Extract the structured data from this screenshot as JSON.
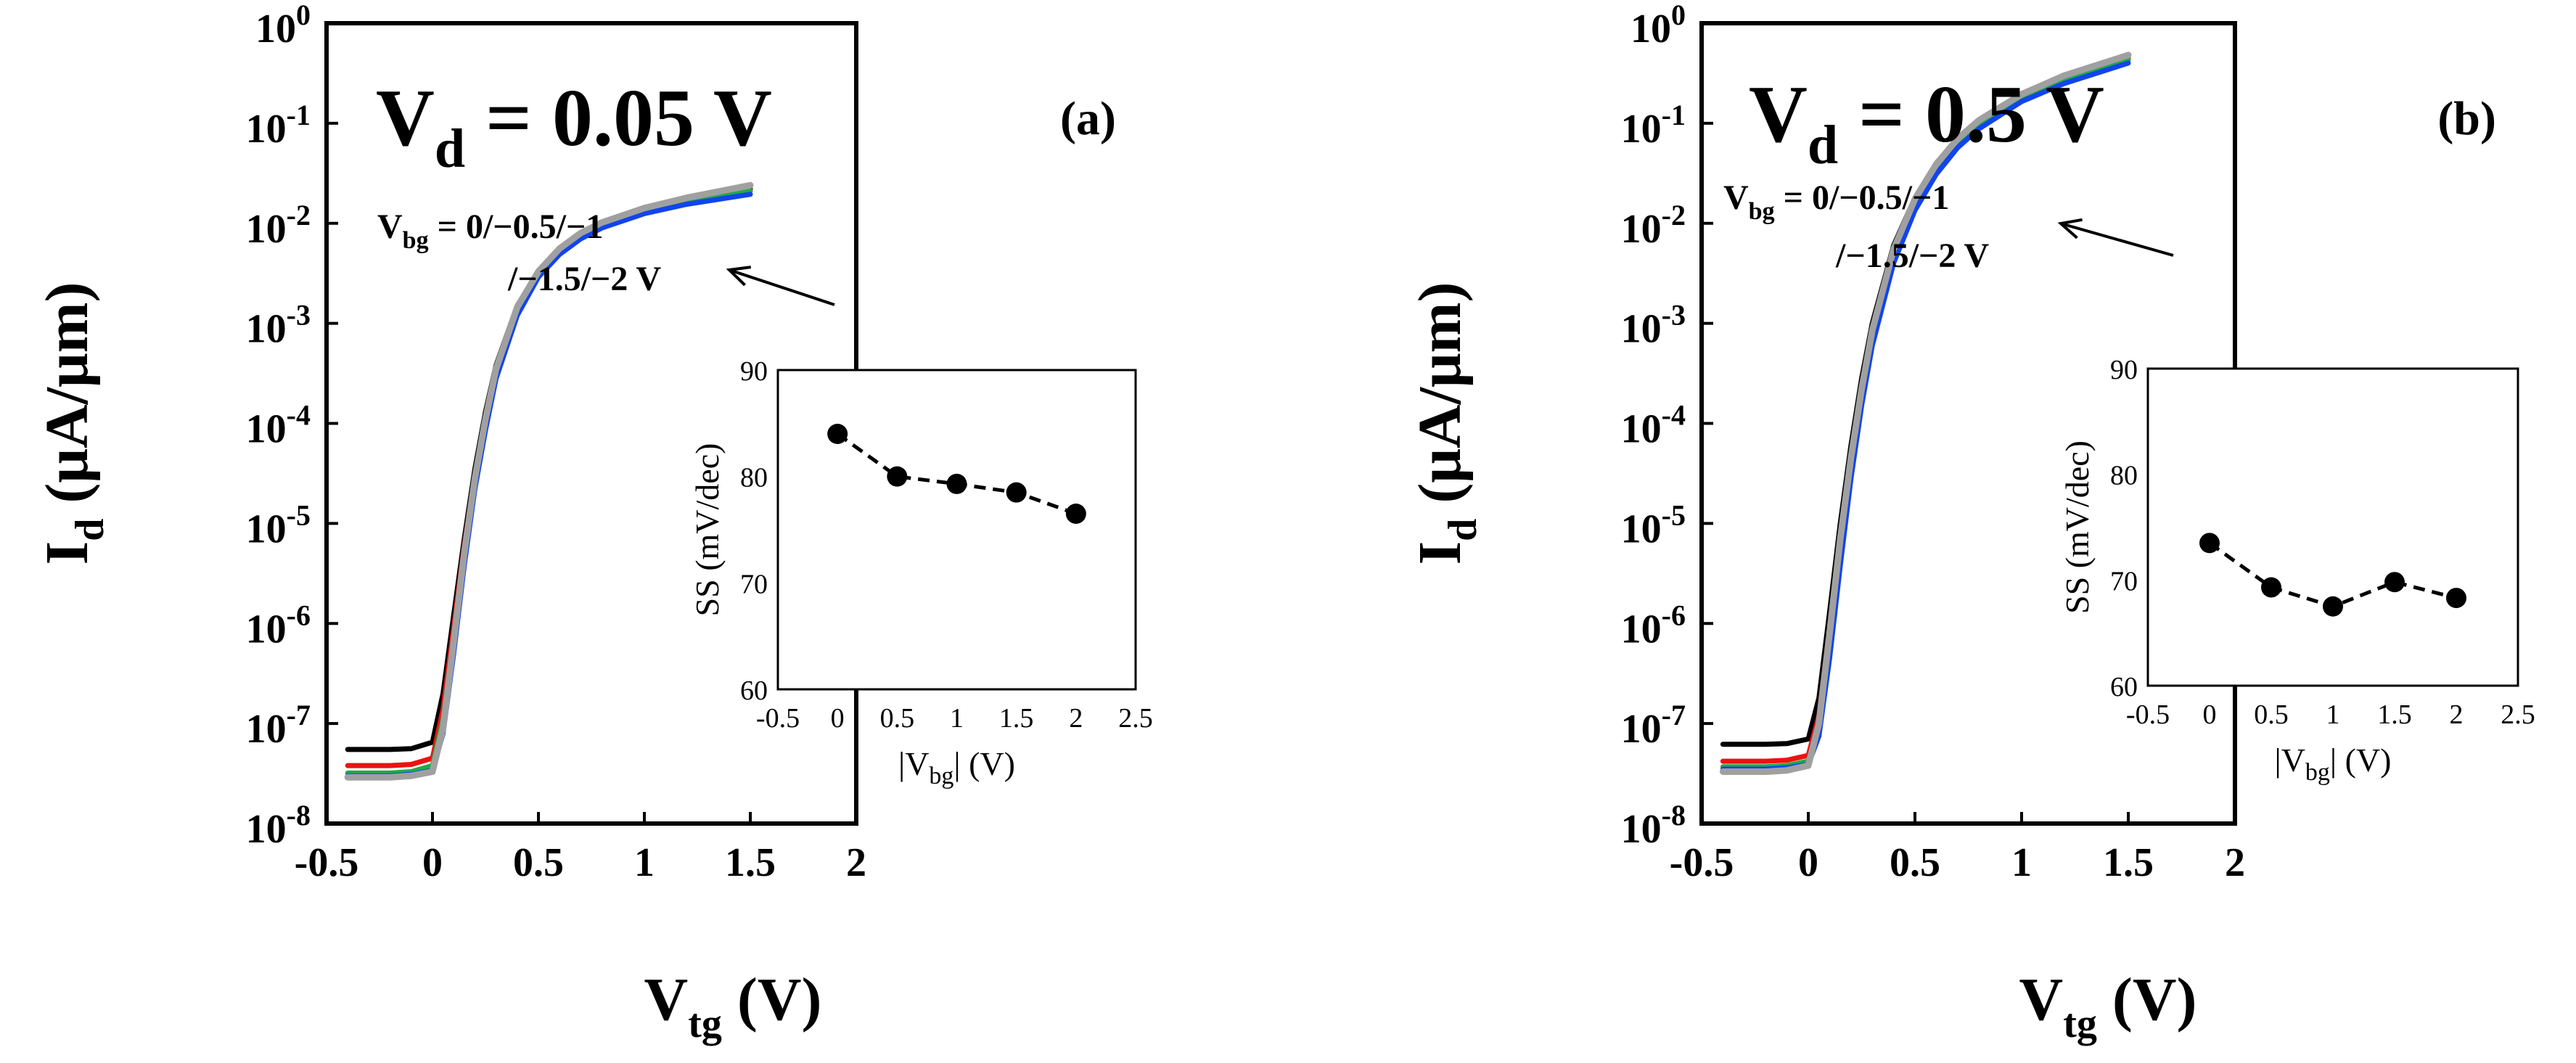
{
  "figure": {
    "panels": [
      {
        "id": "a",
        "panel_label": "(a)",
        "vd_main": "V",
        "vd_sub": "d",
        "vd_value": " = 0.05 V",
        "annotation_line1_main": "V",
        "annotation_line1_sub": "bg",
        "annotation_line1_rest": " = 0/−0.5/−1",
        "annotation_line2": "/−1.5/−2 V"
      },
      {
        "id": "b",
        "panel_label": "(b)",
        "vd_main": "V",
        "vd_sub": "d",
        "vd_value": " = 0.5 V",
        "annotation_line1_main": "V",
        "annotation_line1_sub": "bg",
        "annotation_line1_rest": " = 0/−0.5/−1",
        "annotation_line2": "/−1.5/−2 V"
      }
    ],
    "ylabel_main": "I",
    "ylabel_sub": "d",
    "ylabel_rest": " (μA/μm)",
    "xlabel_main": "V",
    "xlabel_sub": "tg",
    "xlabel_rest": " (V)",
    "inset_ylabel": "SS (mV/dec)",
    "inset_xlabel_pre": "|V",
    "inset_xlabel_sub": "bg",
    "inset_xlabel_post": "| (V)"
  },
  "chart_data": [
    {
      "type": "line",
      "title": "Vd = 0.05 V (a)",
      "xlabel": "Vtg (V)",
      "ylabel": "Id (μA/μm)",
      "xlim": [
        -0.5,
        2
      ],
      "ylim_log10": [
        -8,
        0
      ],
      "x_ticks": [
        "-0.5",
        "0",
        "0.5",
        "1",
        "1.5",
        "2"
      ],
      "y_ticks": [
        {
          "base": "10",
          "exp": "0"
        },
        {
          "base": "10",
          "exp": "-1"
        },
        {
          "base": "10",
          "exp": "-2"
        },
        {
          "base": "10",
          "exp": "-3"
        },
        {
          "base": "10",
          "exp": "-4"
        },
        {
          "base": "10",
          "exp": "-5"
        },
        {
          "base": "10",
          "exp": "-6"
        },
        {
          "base": "10",
          "exp": "-7"
        },
        {
          "base": "10",
          "exp": "-8"
        }
      ],
      "x": [
        -0.4,
        -0.3,
        -0.2,
        -0.1,
        0.0,
        0.05,
        0.1,
        0.15,
        0.2,
        0.25,
        0.3,
        0.4,
        0.5,
        0.6,
        0.7,
        0.8,
        1.0,
        1.2,
        1.5
      ],
      "series": [
        {
          "name": "Vbg = 0 V",
          "color": "#000000",
          "values": [
            5.5e-08,
            5.5e-08,
            5.5e-08,
            5.6e-08,
            6.5e-08,
            2e-07,
            1.2e-06,
            7e-06,
            3.5e-05,
            0.00013,
            0.00038,
            0.0015,
            0.0033,
            0.0054,
            0.0076,
            0.0097,
            0.0135,
            0.017,
            0.022
          ]
        },
        {
          "name": "Vbg = -0.5 V",
          "color": "#ee1111",
          "values": [
            3.8e-08,
            3.8e-08,
            3.8e-08,
            3.9e-08,
            4.5e-08,
            1.4e-07,
            9e-07,
            6e-06,
            3e-05,
            0.000115,
            0.00035,
            0.0014,
            0.0032,
            0.0053,
            0.0075,
            0.0096,
            0.0133,
            0.0168,
            0.0215
          ]
        },
        {
          "name": "Vbg = -1 V",
          "color": "#22aa44",
          "values": [
            3.2e-08,
            3.2e-08,
            3.2e-08,
            3.3e-08,
            3.8e-08,
            1.1e-07,
            7e-07,
            5e-06,
            2.6e-05,
            0.0001,
            0.00032,
            0.00135,
            0.0031,
            0.0052,
            0.0074,
            0.0095,
            0.0132,
            0.0166,
            0.021
          ]
        },
        {
          "name": "Vbg = -1.5 V",
          "color": "#1144ee",
          "values": [
            3e-08,
            3e-08,
            3e-08,
            3.1e-08,
            3.4e-08,
            8e-08,
            5e-07,
            3.8e-06,
            2.2e-05,
            8.5e-05,
            0.00028,
            0.0012,
            0.0029,
            0.0049,
            0.007,
            0.009,
            0.0125,
            0.0155,
            0.0195
          ]
        },
        {
          "name": "Vbg = -2 V",
          "color": "#a0a0a0",
          "values": [
            2.9e-08,
            2.9e-08,
            2.9e-08,
            3e-08,
            3.3e-08,
            9e-08,
            6.5e-07,
            5e-06,
            2.8e-05,
            0.00011,
            0.00035,
            0.00145,
            0.0033,
            0.0056,
            0.008,
            0.0102,
            0.0142,
            0.018,
            0.024
          ]
        }
      ],
      "inset": {
        "type": "line",
        "xlabel": "|Vbg| (V)",
        "ylabel": "SS (mV/dec)",
        "xlim": [
          -0.5,
          2.5
        ],
        "ylim": [
          60,
          90
        ],
        "x_ticks": [
          "-0.5",
          "0",
          "0.5",
          "1",
          "1.5",
          "2",
          "2.5"
        ],
        "y_ticks": [
          "60",
          "70",
          "80",
          "90"
        ],
        "x": [
          0,
          0.5,
          1,
          1.5,
          2
        ],
        "values": [
          84,
          80,
          79.3,
          78.5,
          76.5
        ]
      }
    },
    {
      "type": "line",
      "title": "Vd = 0.5 V (b)",
      "xlabel": "Vtg (V)",
      "ylabel": "Id (μA/μm)",
      "xlim": [
        -0.5,
        2
      ],
      "ylim_log10": [
        -8,
        0
      ],
      "x_ticks": [
        "-0.5",
        "0",
        "0.5",
        "1",
        "1.5",
        "2"
      ],
      "y_ticks": [
        {
          "base": "10",
          "exp": "0"
        },
        {
          "base": "10",
          "exp": "-1"
        },
        {
          "base": "10",
          "exp": "-2"
        },
        {
          "base": "10",
          "exp": "-3"
        },
        {
          "base": "10",
          "exp": "-4"
        },
        {
          "base": "10",
          "exp": "-5"
        },
        {
          "base": "10",
          "exp": "-6"
        },
        {
          "base": "10",
          "exp": "-7"
        },
        {
          "base": "10",
          "exp": "-8"
        }
      ],
      "x": [
        -0.4,
        -0.3,
        -0.2,
        -0.1,
        0.0,
        0.05,
        0.1,
        0.15,
        0.2,
        0.25,
        0.3,
        0.4,
        0.5,
        0.6,
        0.7,
        0.8,
        1.0,
        1.2,
        1.5
      ],
      "series": [
        {
          "name": "Vbg = 0 V",
          "color": "#000000",
          "values": [
            6.2e-08,
            6.2e-08,
            6.2e-08,
            6.3e-08,
            7e-08,
            1.8e-07,
            1.3e-06,
            1e-05,
            6e-05,
            0.00028,
            0.001,
            0.006,
            0.018,
            0.04,
            0.07,
            0.105,
            0.19,
            0.29,
            0.46
          ]
        },
        {
          "name": "Vbg = -0.5 V",
          "color": "#ee1111",
          "values": [
            4.2e-08,
            4.2e-08,
            4.2e-08,
            4.3e-08,
            4.8e-08,
            1.2e-07,
            9e-07,
            7.5e-06,
            4.8e-05,
            0.00023,
            0.00085,
            0.0053,
            0.0165,
            0.037,
            0.066,
            0.1,
            0.185,
            0.28,
            0.45
          ]
        },
        {
          "name": "Vbg = -1 V",
          "color": "#22aa44",
          "values": [
            3.7e-08,
            3.7e-08,
            3.7e-08,
            3.8e-08,
            4.2e-08,
            9.5e-08,
            7e-07,
            6e-06,
            4e-05,
            0.0002,
            0.00075,
            0.0048,
            0.0155,
            0.035,
            0.063,
            0.096,
            0.18,
            0.27,
            0.43
          ]
        },
        {
          "name": "Vbg = -1.5 V",
          "color": "#1144ee",
          "values": [
            3.5e-08,
            3.5e-08,
            3.5e-08,
            3.6e-08,
            3.9e-08,
            7.5e-08,
            4.5e-07,
            3.8e-06,
            2.8e-05,
            0.00015,
            0.0006,
            0.004,
            0.0135,
            0.031,
            0.057,
            0.088,
            0.165,
            0.25,
            0.4
          ]
        },
        {
          "name": "Vbg = -2 V",
          "color": "#a0a0a0",
          "values": [
            3.3e-08,
            3.3e-08,
            3.3e-08,
            3.4e-08,
            3.8e-08,
            1e-07,
            8e-07,
            7e-06,
            4.5e-05,
            0.00022,
            0.00085,
            0.0055,
            0.0175,
            0.039,
            0.07,
            0.107,
            0.195,
            0.3,
            0.48
          ]
        }
      ],
      "inset": {
        "type": "line",
        "xlabel": "|Vbg| (V)",
        "ylabel": "SS (mV/dec)",
        "xlim": [
          -0.5,
          2.5
        ],
        "ylim": [
          60,
          90
        ],
        "x_ticks": [
          "-0.5",
          "0",
          "0.5",
          "1",
          "1.5",
          "2",
          "2.5"
        ],
        "y_ticks": [
          "60",
          "70",
          "80",
          "90"
        ],
        "x": [
          0,
          0.5,
          1,
          1.5,
          2
        ],
        "values": [
          73.5,
          69.3,
          67.5,
          69.8,
          68.3
        ]
      }
    }
  ]
}
